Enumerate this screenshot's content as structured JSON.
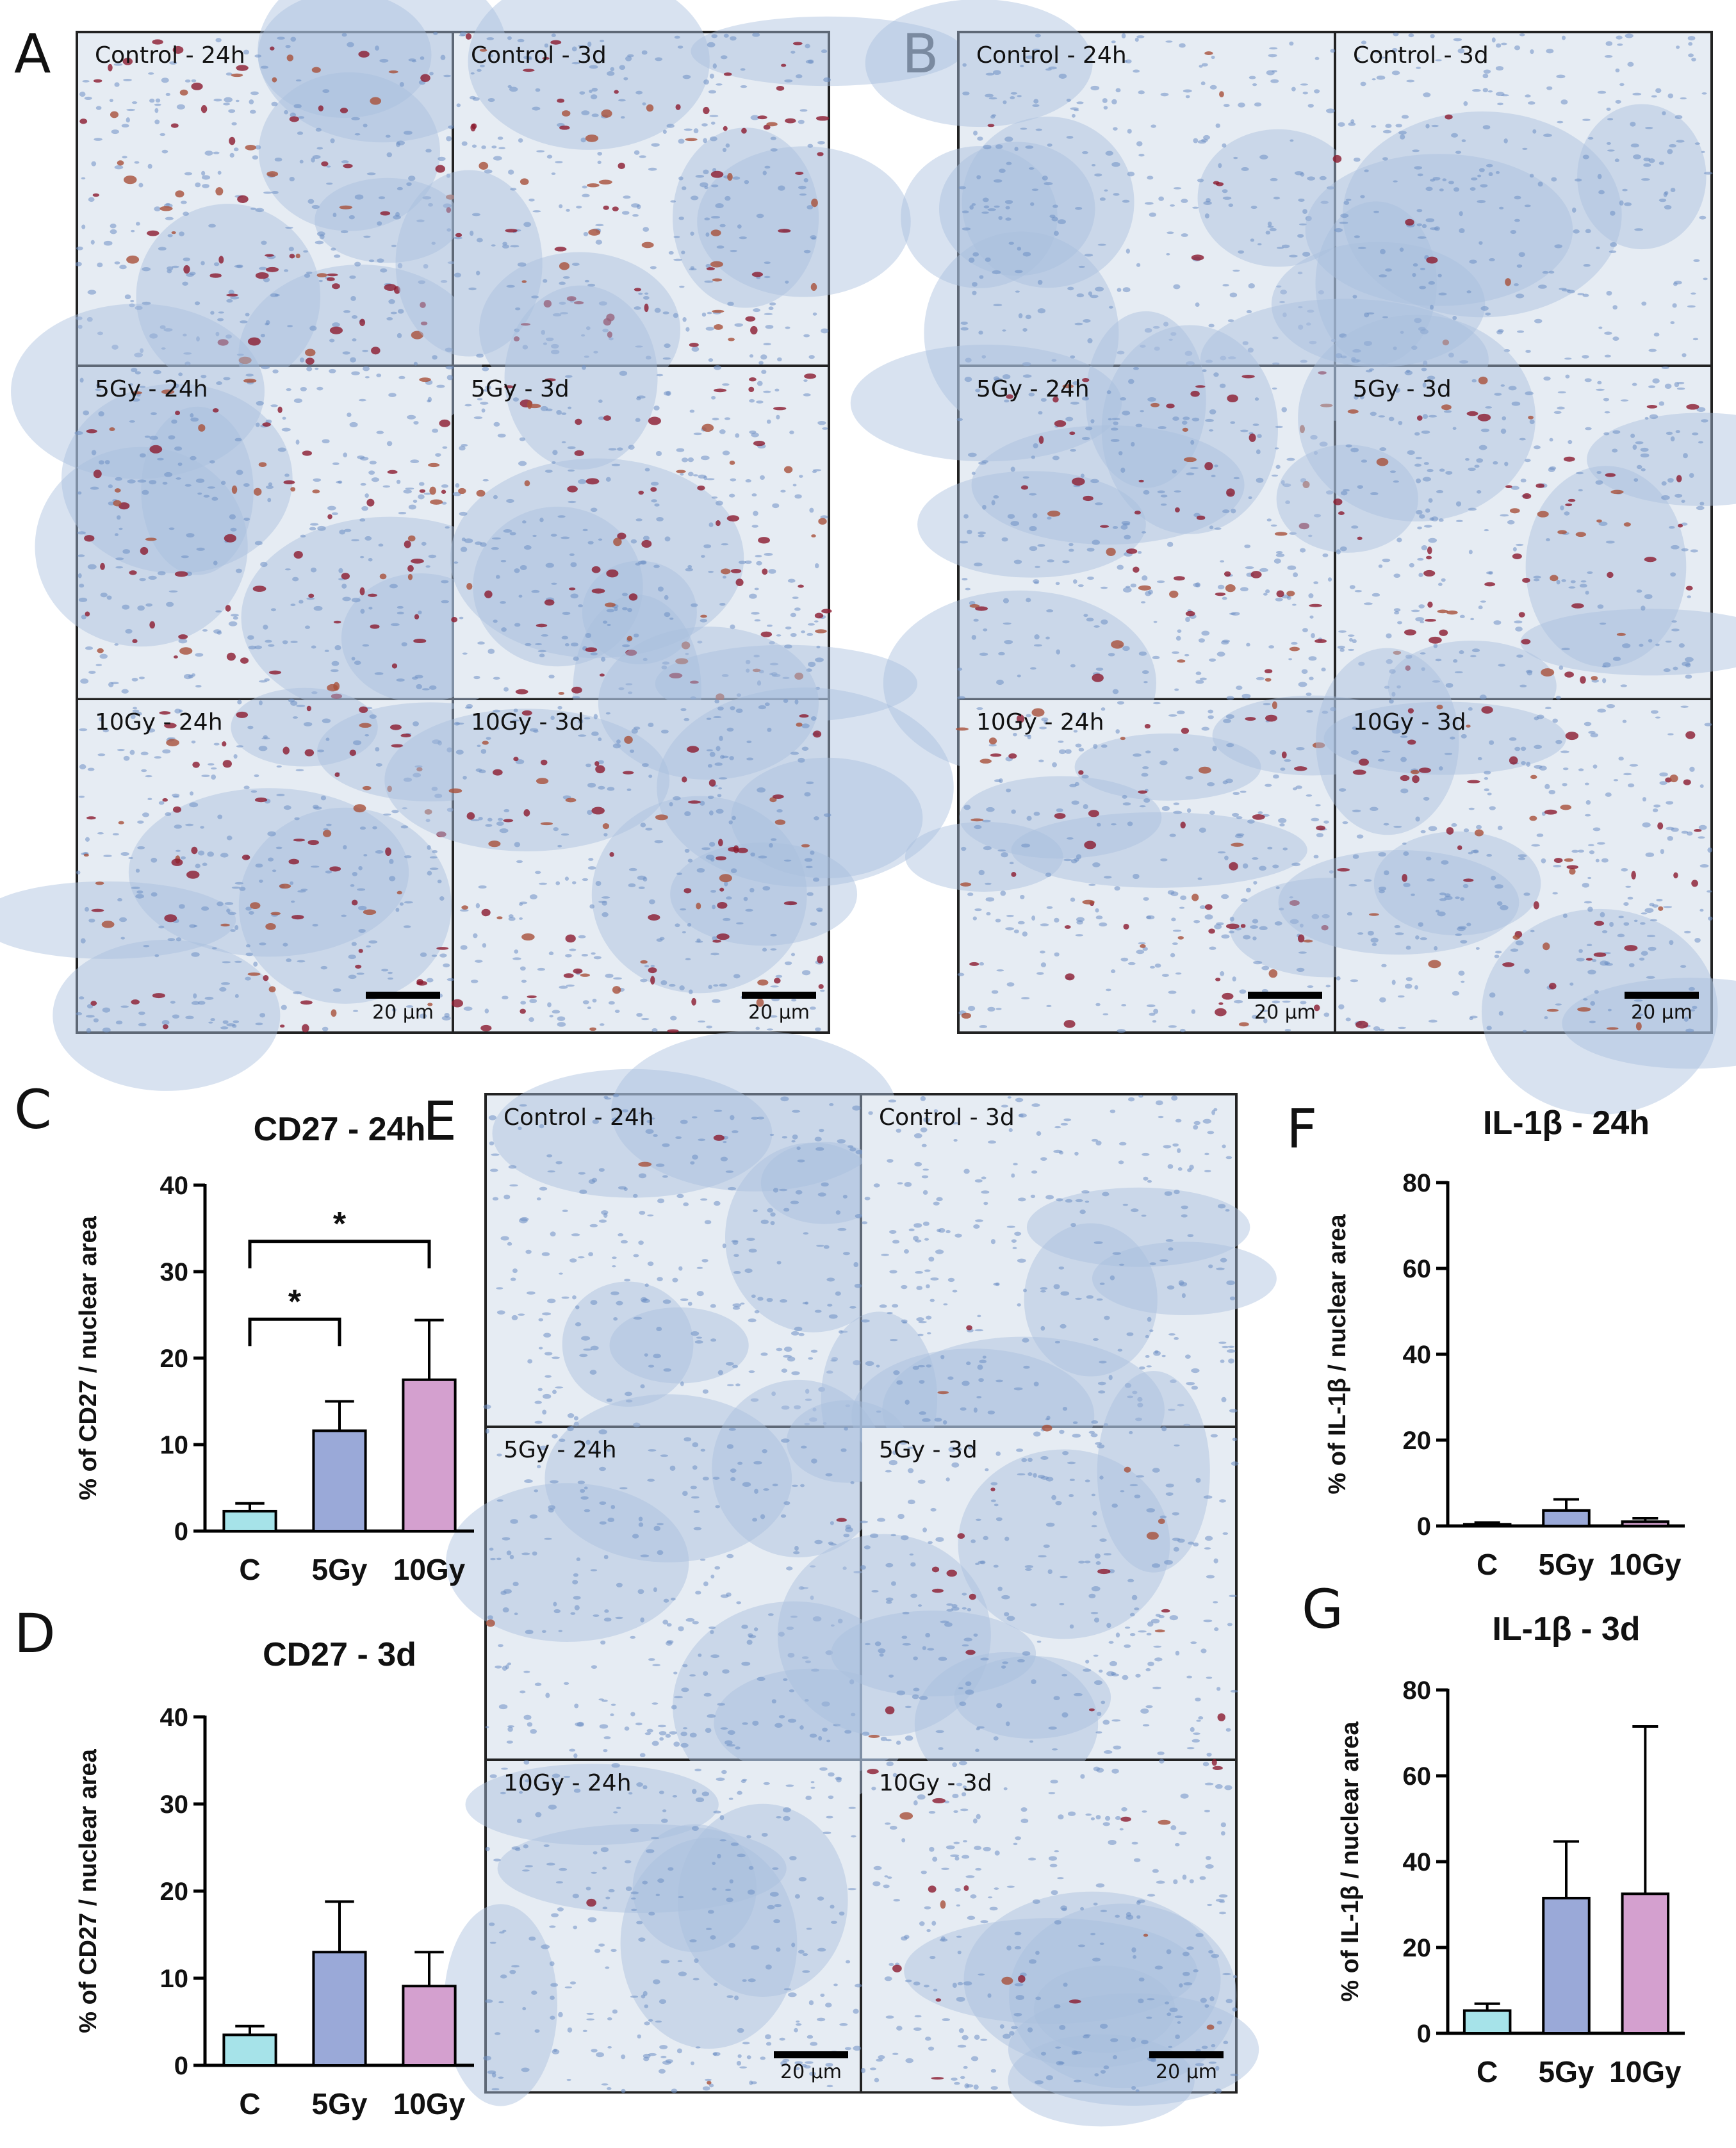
{
  "panels": {
    "A": "A",
    "B": "B",
    "C": "C",
    "D": "D",
    "E": "E",
    "F": "F",
    "G": "G"
  },
  "micro_labels": [
    "Control - 24h",
    "Control - 3d",
    "5Gy - 24h",
    "5Gy - 3d",
    "10Gy - 24h",
    "10Gy - 3d"
  ],
  "scale_bar_label": "20 µm",
  "colors": {
    "control": "#a6e3e9",
    "gy5": "#9aa9d8",
    "gy10": "#d4a0cf",
    "stain": "#8b1a2e",
    "background_tissue": "#dfe7f1"
  },
  "chart_data": [
    {
      "id": "C",
      "type": "bar",
      "title": "CD27 - 24h",
      "ylabel": "% of CD27 / nuclear area",
      "xlabel": "",
      "categories": [
        "C",
        "5Gy",
        "10Gy"
      ],
      "values": [
        2.3,
        11.6,
        17.5
      ],
      "errors": [
        0.9,
        3.4,
        6.9
      ],
      "ylim": [
        0,
        40
      ],
      "yticks": [
        0,
        10,
        20,
        30,
        40
      ],
      "significance": [
        {
          "from": 0,
          "to": 1,
          "label": "*",
          "y": 24.5
        },
        {
          "from": 0,
          "to": 2,
          "label": "*",
          "y": 33.5
        }
      ]
    },
    {
      "id": "D",
      "type": "bar",
      "title": "CD27 - 3d",
      "ylabel": "% of CD27 / nuclear area",
      "xlabel": "",
      "categories": [
        "C",
        "5Gy",
        "10Gy"
      ],
      "values": [
        3.5,
        13.0,
        9.1
      ],
      "errors": [
        1.0,
        5.8,
        3.9
      ],
      "ylim": [
        0,
        40
      ],
      "yticks": [
        0,
        10,
        20,
        30,
        40
      ],
      "significance": []
    },
    {
      "id": "F",
      "type": "bar",
      "title": "IL-1β - 24h",
      "ylabel": "% of IL-1β / nuclear area",
      "xlabel": "",
      "categories": [
        "C",
        "5Gy",
        "10Gy"
      ],
      "values": [
        0.4,
        3.6,
        1.0
      ],
      "errors": [
        0.4,
        2.6,
        0.8
      ],
      "ylim": [
        0,
        80
      ],
      "yticks": [
        0,
        20,
        40,
        60,
        80
      ],
      "significance": []
    },
    {
      "id": "G",
      "type": "bar",
      "title": "IL-1β - 3d",
      "ylabel": "% of IL-1β / nuclear area",
      "xlabel": "",
      "categories": [
        "C",
        "5Gy",
        "10Gy"
      ],
      "values": [
        5.3,
        31.5,
        32.5
      ],
      "errors": [
        1.6,
        13.2,
        39.0
      ],
      "ylim": [
        0,
        80
      ],
      "yticks": [
        0,
        20,
        40,
        60,
        80
      ],
      "significance": []
    }
  ]
}
